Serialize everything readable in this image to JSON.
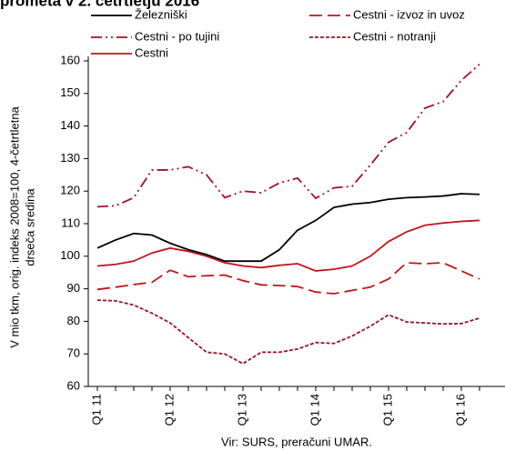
{
  "chart_data": {
    "type": "line",
    "title": "prometa v 2. četrtletju 2016",
    "ylabel": [
      "V mio tkm, orig. indeks 2008=100, 4-četrtletna",
      "drseča sredina"
    ],
    "source": "Vir: SURS, preračuni UMAR.",
    "categories": [
      "Q1 11",
      null,
      null,
      null,
      "Q1 12",
      null,
      null,
      null,
      "Q1 13",
      null,
      null,
      null,
      "Q1 14",
      null,
      null,
      null,
      "Q1 15",
      null,
      null,
      null,
      "Q1 16",
      null
    ],
    "ylim": [
      60,
      160
    ],
    "yticks": [
      60,
      70,
      80,
      90,
      100,
      110,
      120,
      130,
      140,
      150,
      160
    ],
    "series": [
      {
        "name": "Železniški",
        "color": "#000000",
        "dash": "solid",
        "values": [
          102.5,
          105,
          107,
          106.5,
          104,
          102,
          100.5,
          98.5,
          98.5,
          98.5,
          102,
          108,
          111,
          115,
          116,
          116.5,
          117.5,
          118,
          118.2,
          118.5,
          119.2,
          119
        ]
      },
      {
        "name": "Cestni - izvoz in uvoz",
        "color": "#c0141c",
        "dash": "dashed",
        "values": [
          89.8,
          90.5,
          91.3,
          92,
          95.7,
          93.7,
          94,
          94.2,
          92.5,
          91.2,
          91,
          90.7,
          89,
          88.5,
          89.5,
          90.5,
          93,
          98,
          97.7,
          98,
          95.5,
          93
        ]
      },
      {
        "name": "Cestni - po tujini",
        "color": "#a0102a",
        "dash": "dashdot",
        "values": [
          115.2,
          115.5,
          118,
          126.5,
          126.5,
          127.5,
          125,
          118,
          120,
          119.5,
          122.5,
          124,
          117.8,
          121,
          121.5,
          128,
          135,
          138,
          145.5,
          147.5,
          154,
          159
        ]
      },
      {
        "name": "Cestni - notranji",
        "color": "#a0102a",
        "dash": "dotted",
        "values": [
          86.5,
          86.3,
          85,
          82.5,
          79.5,
          75,
          70.5,
          70,
          67,
          70.5,
          70.5,
          71.5,
          73.5,
          73.2,
          75.5,
          78.5,
          82,
          79.8,
          79.5,
          79.2,
          79.3,
          81
        ]
      },
      {
        "name": "Cestni",
        "color": "#c0141c",
        "dash": "solid",
        "values": [
          97,
          97.5,
          98.5,
          101,
          102.5,
          101.5,
          100,
          98,
          97,
          96.5,
          97.2,
          97.7,
          95.5,
          96,
          97,
          100,
          104.5,
          107.5,
          109.5,
          110.2,
          110.7,
          111
        ]
      }
    ]
  }
}
